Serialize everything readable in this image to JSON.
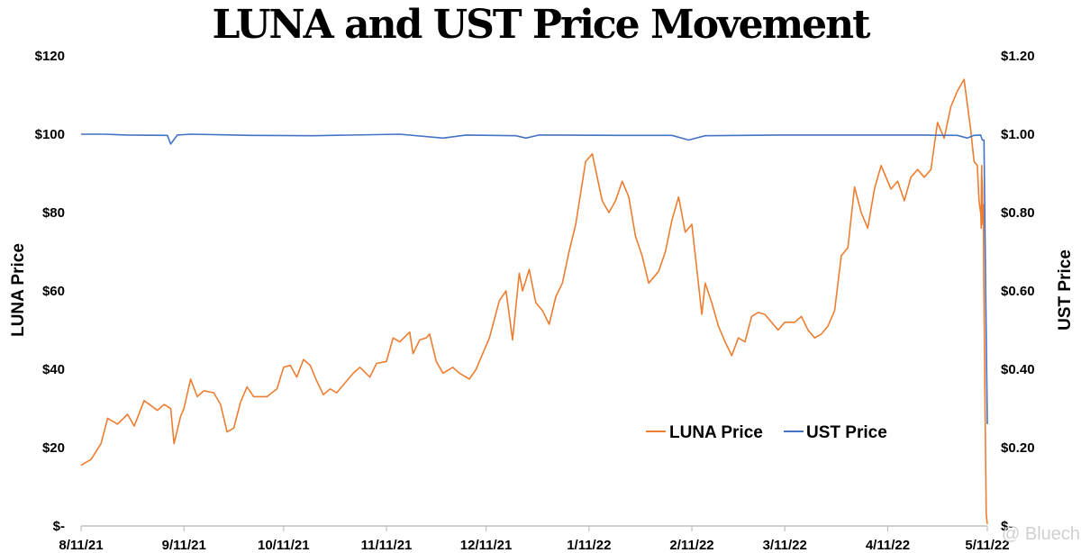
{
  "chart_data": {
    "type": "line",
    "title": "LUNA and UST Price Movement",
    "ylabel_left": "LUNA Price",
    "ylabel_right": "UST Price",
    "xlabel": "",
    "y_left_ticks": [
      "$-",
      "$20",
      "$40",
      "$60",
      "$80",
      "$100",
      "$120"
    ],
    "y_right_ticks": [
      "$-",
      "$0.20",
      "$0.40",
      "$0.60",
      "$0.80",
      "$1.00",
      "$1.20"
    ],
    "ylim_left": [
      0,
      120
    ],
    "ylim_right": [
      0,
      1.2
    ],
    "x_tick_labels": [
      "8/11/21",
      "9/11/21",
      "10/11/21",
      "11/11/21",
      "12/11/21",
      "1/11/22",
      "2/11/22",
      "3/11/22",
      "4/11/22",
      "5/11/22"
    ],
    "x_ticks": [
      "2021-08-11",
      "2021-09-11",
      "2021-10-11",
      "2021-11-11",
      "2021-12-11",
      "2022-01-11",
      "2022-02-11",
      "2022-03-11",
      "2022-04-11",
      "2022-05-11"
    ],
    "xlim": [
      "2021-08-11",
      "2022-05-11"
    ],
    "grid": false,
    "legend_position": "lower-right",
    "series": [
      {
        "name": "LUNA Price",
        "axis": "left",
        "color": "#ED7D31",
        "points": [
          [
            "2021-08-11",
            15.5
          ],
          [
            "2021-08-14",
            17
          ],
          [
            "2021-08-17",
            21
          ],
          [
            "2021-08-19",
            27.5
          ],
          [
            "2021-08-22",
            26
          ],
          [
            "2021-08-25",
            28.5
          ],
          [
            "2021-08-27",
            25.5
          ],
          [
            "2021-08-30",
            32
          ],
          [
            "2021-09-03",
            29.5
          ],
          [
            "2021-09-05",
            31
          ],
          [
            "2021-09-07",
            30
          ],
          [
            "2021-09-08",
            21
          ],
          [
            "2021-09-10",
            28
          ],
          [
            "2021-09-11",
            30
          ],
          [
            "2021-09-13",
            37.5
          ],
          [
            "2021-09-15",
            33
          ],
          [
            "2021-09-17",
            34.5
          ],
          [
            "2021-09-20",
            34
          ],
          [
            "2021-09-22",
            31
          ],
          [
            "2021-09-24",
            24
          ],
          [
            "2021-09-26",
            25
          ],
          [
            "2021-09-28",
            31.5
          ],
          [
            "2021-09-30",
            35.5
          ],
          [
            "2021-10-02",
            33
          ],
          [
            "2021-10-06",
            33
          ],
          [
            "2021-10-09",
            35
          ],
          [
            "2021-10-11",
            40.5
          ],
          [
            "2021-10-13",
            41
          ],
          [
            "2021-10-15",
            38
          ],
          [
            "2021-10-17",
            42.5
          ],
          [
            "2021-10-19",
            41
          ],
          [
            "2021-10-21",
            37
          ],
          [
            "2021-10-23",
            33.5
          ],
          [
            "2021-10-25",
            35
          ],
          [
            "2021-10-27",
            34
          ],
          [
            "2021-10-29",
            36
          ],
          [
            "2021-11-01",
            39
          ],
          [
            "2021-11-03",
            40.5
          ],
          [
            "2021-11-06",
            38
          ],
          [
            "2021-11-08",
            41.5
          ],
          [
            "2021-11-11",
            42
          ],
          [
            "2021-11-13",
            48
          ],
          [
            "2021-11-15",
            47
          ],
          [
            "2021-11-18",
            49.5
          ],
          [
            "2021-11-19",
            44
          ],
          [
            "2021-11-21",
            47.5
          ],
          [
            "2021-11-23",
            48
          ],
          [
            "2021-11-24",
            49
          ],
          [
            "2021-11-26",
            42
          ],
          [
            "2021-11-28",
            39
          ],
          [
            "2021-12-01",
            40.5
          ],
          [
            "2021-12-03",
            39
          ],
          [
            "2021-12-06",
            37.5
          ],
          [
            "2021-12-08",
            40
          ],
          [
            "2021-12-10",
            44
          ],
          [
            "2021-12-12",
            48
          ],
          [
            "2021-12-15",
            57.5
          ],
          [
            "2021-12-17",
            60
          ],
          [
            "2021-12-19",
            47.5
          ],
          [
            "2021-12-21",
            64.5
          ],
          [
            "2021-12-22",
            60
          ],
          [
            "2021-12-24",
            65.5
          ],
          [
            "2021-12-26",
            57
          ],
          [
            "2021-12-28",
            55
          ],
          [
            "2021-12-30",
            51.5
          ],
          [
            "2022-01-01",
            58.5
          ],
          [
            "2022-01-03",
            62
          ],
          [
            "2022-01-05",
            70
          ],
          [
            "2022-01-07",
            77
          ],
          [
            "2022-01-10",
            93
          ],
          [
            "2022-01-12",
            95
          ],
          [
            "2022-01-15",
            83
          ],
          [
            "2022-01-17",
            80
          ],
          [
            "2022-01-19",
            83
          ],
          [
            "2022-01-21",
            88
          ],
          [
            "2022-01-23",
            84
          ],
          [
            "2022-01-25",
            74
          ],
          [
            "2022-01-27",
            69
          ],
          [
            "2022-01-29",
            62
          ],
          [
            "2022-02-01",
            65
          ],
          [
            "2022-02-03",
            70
          ],
          [
            "2022-02-05",
            78
          ],
          [
            "2022-02-07",
            84
          ],
          [
            "2022-02-09",
            75
          ],
          [
            "2022-02-11",
            77
          ],
          [
            "2022-02-14",
            54
          ],
          [
            "2022-02-15",
            62
          ],
          [
            "2022-02-17",
            57
          ],
          [
            "2022-02-19",
            51
          ],
          [
            "2022-02-21",
            47
          ],
          [
            "2022-02-23",
            43.5
          ],
          [
            "2022-02-25",
            48
          ],
          [
            "2022-02-27",
            47
          ],
          [
            "2022-03-01",
            53.5
          ],
          [
            "2022-03-03",
            54.5
          ],
          [
            "2022-03-05",
            54
          ],
          [
            "2022-03-07",
            52
          ],
          [
            "2022-03-09",
            50
          ],
          [
            "2022-03-11",
            52
          ],
          [
            "2022-03-14",
            52
          ],
          [
            "2022-03-16",
            53.5
          ],
          [
            "2022-03-18",
            50
          ],
          [
            "2022-03-20",
            48
          ],
          [
            "2022-03-22",
            49
          ],
          [
            "2022-03-24",
            51
          ],
          [
            "2022-03-26",
            55
          ],
          [
            "2022-03-28",
            69
          ],
          [
            "2022-03-30",
            71
          ],
          [
            "2022-04-01",
            86.5
          ],
          [
            "2022-04-03",
            80
          ],
          [
            "2022-04-05",
            76
          ],
          [
            "2022-04-07",
            86
          ],
          [
            "2022-04-09",
            92
          ],
          [
            "2022-04-12",
            86
          ],
          [
            "2022-04-14",
            88
          ],
          [
            "2022-04-16",
            83
          ],
          [
            "2022-04-18",
            89
          ],
          [
            "2022-04-20",
            91
          ],
          [
            "2022-04-22",
            89
          ],
          [
            "2022-04-24",
            91
          ],
          [
            "2022-04-26",
            103
          ],
          [
            "2022-04-28",
            99
          ],
          [
            "2022-04-30",
            107
          ],
          [
            "2022-05-02",
            111
          ],
          [
            "2022-05-04",
            114
          ],
          [
            "2022-05-06",
            101
          ],
          [
            "2022-05-07",
            93
          ],
          [
            "2022-05-08",
            92
          ],
          [
            "2022-05-09",
            83
          ],
          [
            "2022-05-09",
            80
          ],
          [
            "2022-05-10",
            79
          ],
          [
            "2022-05-10",
            76
          ],
          [
            "2022-05-10",
            88
          ],
          [
            "2022-05-10",
            92
          ],
          [
            "2022-05-10",
            89
          ],
          [
            "2022-05-10",
            88
          ],
          [
            "2022-05-10",
            86
          ],
          [
            "2022-05-10",
            77
          ],
          [
            "2022-05-10",
            79
          ],
          [
            "2022-05-10",
            82
          ],
          [
            "2022-05-10",
            76
          ],
          [
            "2022-05-10",
            63
          ],
          [
            "2022-05-10",
            58
          ],
          [
            "2022-05-11",
            30
          ],
          [
            "2022-05-11",
            3
          ],
          [
            "2022-05-11",
            0.5
          ]
        ]
      },
      {
        "name": "UST Price",
        "axis": "right",
        "color": "#4472C4",
        "points": [
          [
            "2021-08-11",
            1.0
          ],
          [
            "2021-08-18",
            1.0
          ],
          [
            "2021-08-25",
            0.998
          ],
          [
            "2021-09-06",
            0.997
          ],
          [
            "2021-09-07",
            0.975
          ],
          [
            "2021-09-09",
            0.998
          ],
          [
            "2021-09-13",
            1.0
          ],
          [
            "2021-10-01",
            0.997
          ],
          [
            "2021-10-20",
            0.996
          ],
          [
            "2021-11-15",
            1.0
          ],
          [
            "2021-11-28",
            0.99
          ],
          [
            "2021-12-05",
            0.998
          ],
          [
            "2021-12-20",
            0.996
          ],
          [
            "2021-12-23",
            0.99
          ],
          [
            "2021-12-27",
            0.998
          ],
          [
            "2022-01-20",
            0.997
          ],
          [
            "2022-02-05",
            0.997
          ],
          [
            "2022-02-10",
            0.985
          ],
          [
            "2022-02-15",
            0.996
          ],
          [
            "2022-03-10",
            0.998
          ],
          [
            "2022-04-01",
            0.998
          ],
          [
            "2022-04-20",
            0.998
          ],
          [
            "2022-05-02",
            0.997
          ],
          [
            "2022-05-05",
            0.99
          ],
          [
            "2022-05-07",
            0.997
          ],
          [
            "2022-05-09",
            0.998
          ],
          [
            "2022-05-10",
            0.985
          ],
          [
            "2022-05-10",
            0.985
          ],
          [
            "2022-05-11",
            0.6
          ],
          [
            "2022-05-11",
            0.26
          ]
        ]
      }
    ]
  }
}
